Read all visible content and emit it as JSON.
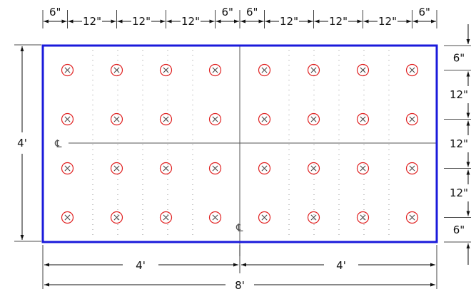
{
  "colors": {
    "panel_outline": "#1a1adb",
    "hole": "#e02020",
    "dimension": "#111111",
    "centerline": "#555555",
    "grid": "#777777"
  },
  "panel": {
    "width_ft": 8,
    "height_ft": 4
  },
  "holes": {
    "columns": 8,
    "rows": 4,
    "edge_spacing_in": 6,
    "spacing_in": 12,
    "icon": "circled-x-icon"
  },
  "dimensions": {
    "top": [
      "6\"",
      "12\"",
      "12\"",
      "12\"",
      "6\"",
      "6\"",
      "12\"",
      "12\"",
      "12\"",
      "6\""
    ],
    "right": [
      "6\"",
      "12\"",
      "12\"",
      "12\"",
      "6\""
    ],
    "left": "4'",
    "bottom_halves": [
      "4'",
      "4'"
    ],
    "bottom_total": "8'"
  },
  "centerline_symbol": "℄"
}
